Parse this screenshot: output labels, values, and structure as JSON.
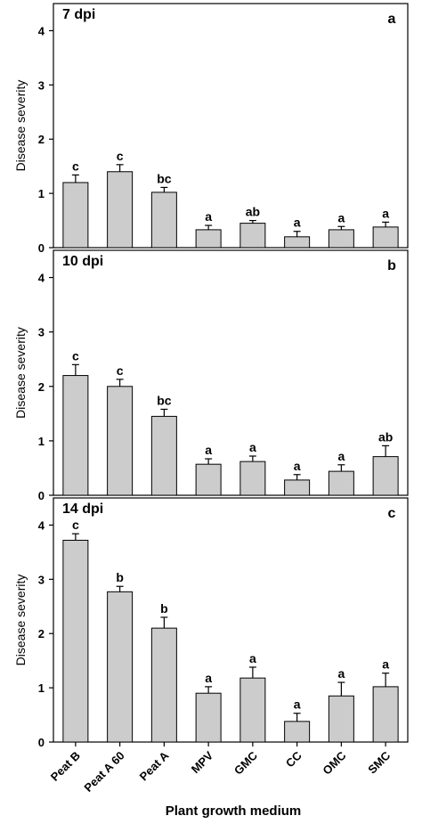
{
  "chart_data": [
    {
      "type": "bar",
      "panel_label": "7 dpi",
      "panel_letter": "a",
      "ylabel": "Disease severity",
      "ylim": [
        0,
        4.5
      ],
      "yticks": [
        0,
        1,
        2,
        3,
        4
      ],
      "categories": [
        "Peat B",
        "Peat A 60",
        "Peat A",
        "MPV",
        "GMC",
        "CC",
        "OMC",
        "SMC"
      ],
      "values": [
        1.2,
        1.4,
        1.02,
        0.33,
        0.45,
        0.2,
        0.33,
        0.38
      ],
      "errors": [
        0.14,
        0.13,
        0.09,
        0.08,
        0.05,
        0.1,
        0.06,
        0.09
      ],
      "significance": [
        "c",
        "c",
        "bc",
        "a",
        "ab",
        "a",
        "a",
        "a"
      ]
    },
    {
      "type": "bar",
      "panel_label": "10 dpi",
      "panel_letter": "b",
      "ylabel": "Disease severity",
      "ylim": [
        0,
        4.5
      ],
      "yticks": [
        0,
        1,
        2,
        3,
        4
      ],
      "categories": [
        "Peat B",
        "Peat A 60",
        "Peat A",
        "MPV",
        "GMC",
        "CC",
        "OMC",
        "SMC"
      ],
      "values": [
        2.2,
        2.0,
        1.45,
        0.57,
        0.62,
        0.28,
        0.44,
        0.71
      ],
      "errors": [
        0.2,
        0.13,
        0.13,
        0.1,
        0.1,
        0.1,
        0.12,
        0.2
      ],
      "significance": [
        "c",
        "c",
        "bc",
        "a",
        "a",
        "a",
        "a",
        "ab"
      ]
    },
    {
      "type": "bar",
      "panel_label": "14 dpi",
      "panel_letter": "c",
      "ylabel": "Disease severity",
      "ylim": [
        0,
        4.5
      ],
      "yticks": [
        0,
        1,
        2,
        3,
        4
      ],
      "categories": [
        "Peat B",
        "Peat A 60",
        "Peat A",
        "MPV",
        "GMC",
        "CC",
        "OMC",
        "SMC"
      ],
      "values": [
        3.72,
        2.77,
        2.1,
        0.9,
        1.18,
        0.38,
        0.85,
        1.02
      ],
      "errors": [
        0.12,
        0.1,
        0.2,
        0.12,
        0.2,
        0.15,
        0.25,
        0.25
      ],
      "significance": [
        "c",
        "b",
        "b",
        "a",
        "a",
        "a",
        "a",
        "a"
      ]
    }
  ],
  "xlabel": "Plant growth medium",
  "colors": {
    "bar_fill": "#cccccc",
    "bar_stroke": "#000000",
    "axis": "#000000"
  }
}
